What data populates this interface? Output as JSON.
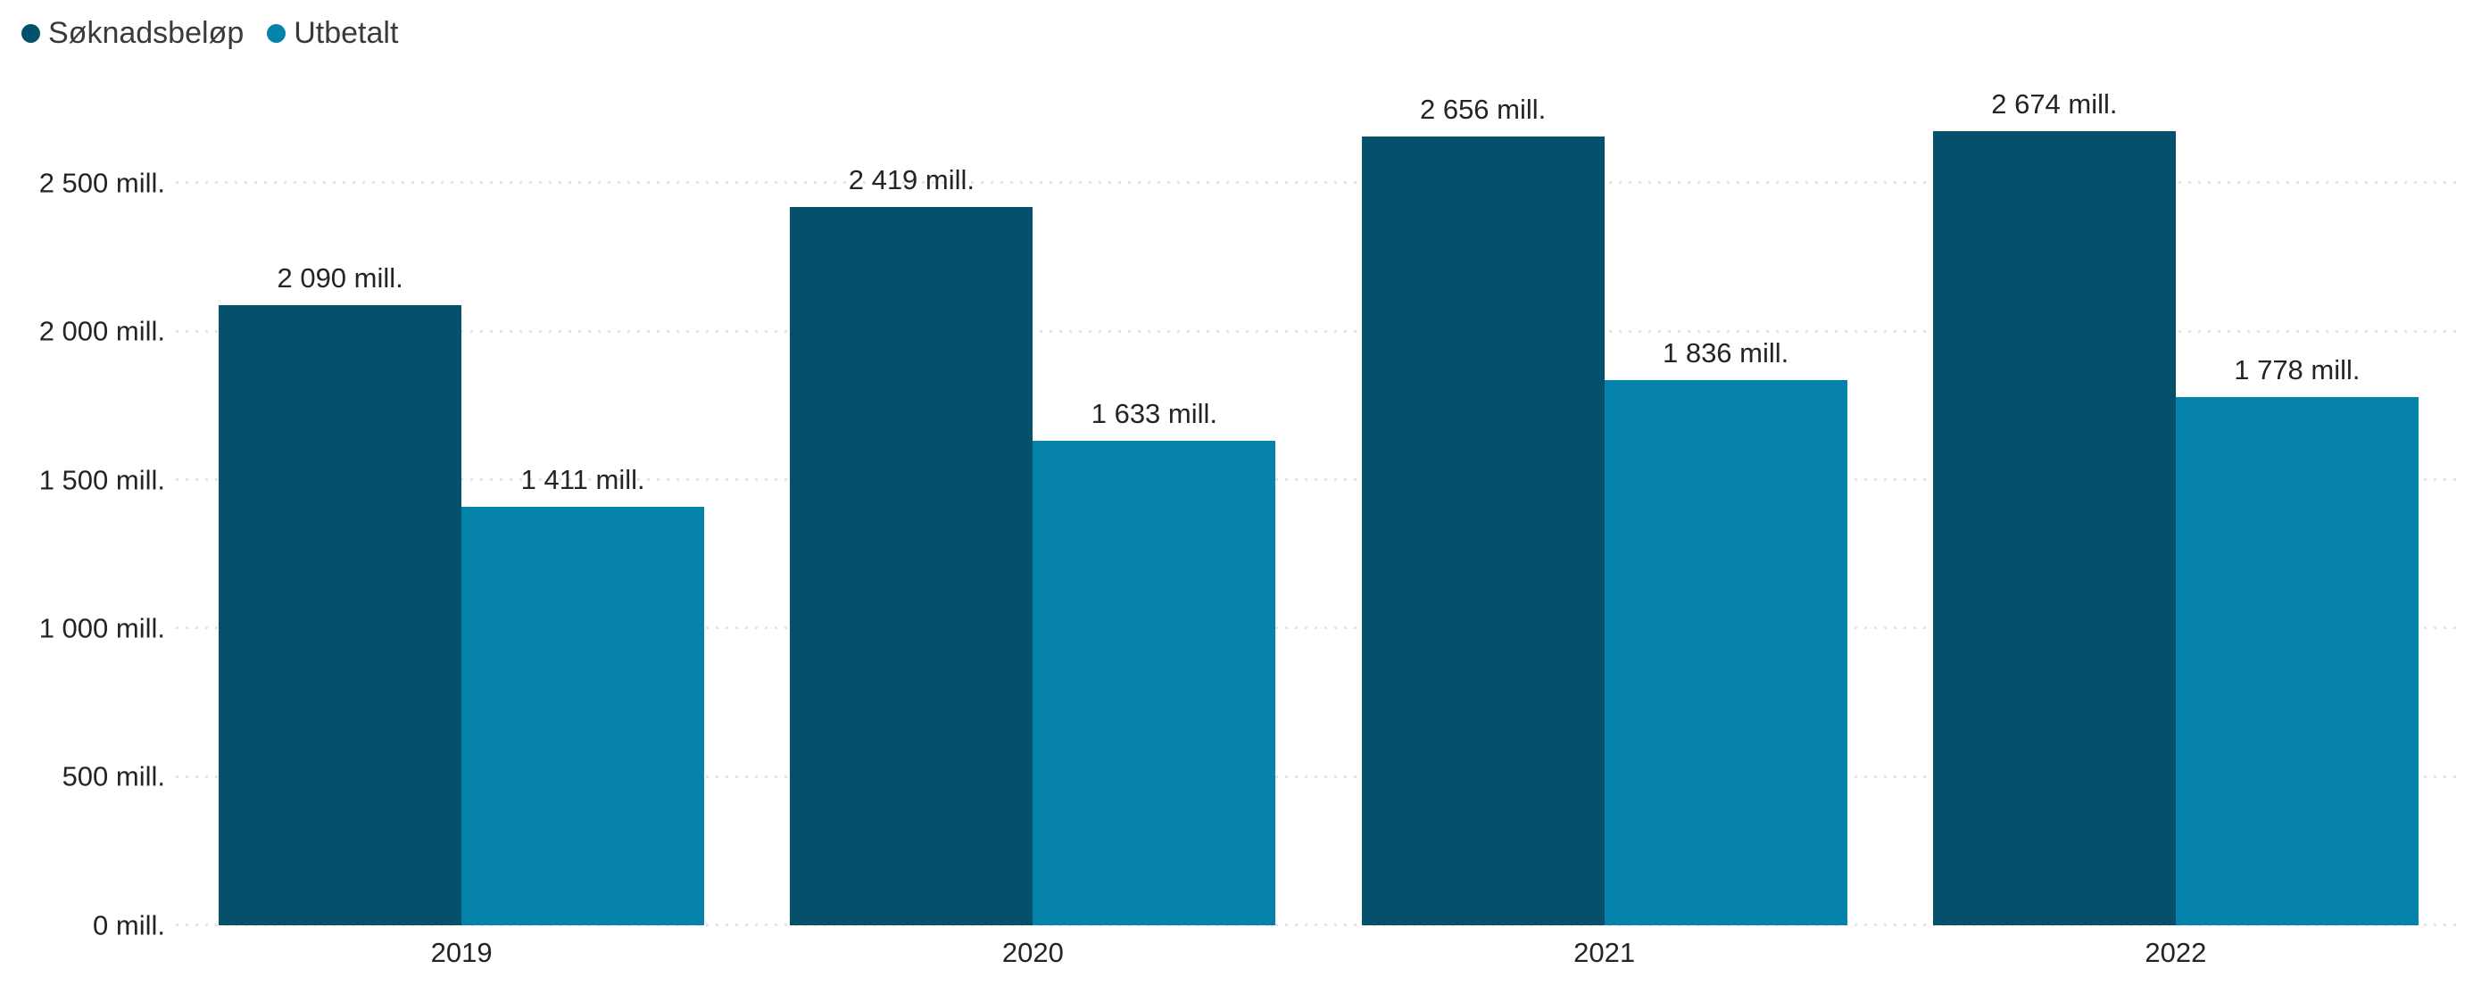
{
  "legend": {
    "items": [
      {
        "label": "Søknadsbeløp",
        "color": "#05506B"
      },
      {
        "label": "Utbetalt",
        "color": "#0583AB"
      }
    ]
  },
  "y_axis": {
    "ticks": [
      "0 mill.",
      "500 mill.",
      "1 000 mill.",
      "1 500 mill.",
      "2 000 mill.",
      "2 500 mill."
    ]
  },
  "chart_data": {
    "type": "bar",
    "title": "",
    "categories": [
      "2019",
      "2020",
      "2021",
      "2022"
    ],
    "series": [
      {
        "name": "Søknadsbeløp",
        "color": "#05506B",
        "values": [
          2090,
          2419,
          2656,
          2674
        ],
        "labels": [
          "2 090 mill.",
          "2 419 mill.",
          "2 656 mill.",
          "2 674 mill."
        ]
      },
      {
        "name": "Utbetalt",
        "color": "#0583AB",
        "values": [
          1411,
          1633,
          1836,
          1778
        ],
        "labels": [
          "1 411 mill.",
          "1 633 mill.",
          "1 836 mill.",
          "1 778 mill."
        ]
      }
    ],
    "unit": "mill.",
    "xlabel": "",
    "ylabel": "",
    "ylim": [
      0,
      2750
    ],
    "y_tick_step": 500,
    "grid": "horizontal-dotted",
    "legend_position": "top-left",
    "gridline_color": "#e4e4e4",
    "label_color": "#252423"
  }
}
